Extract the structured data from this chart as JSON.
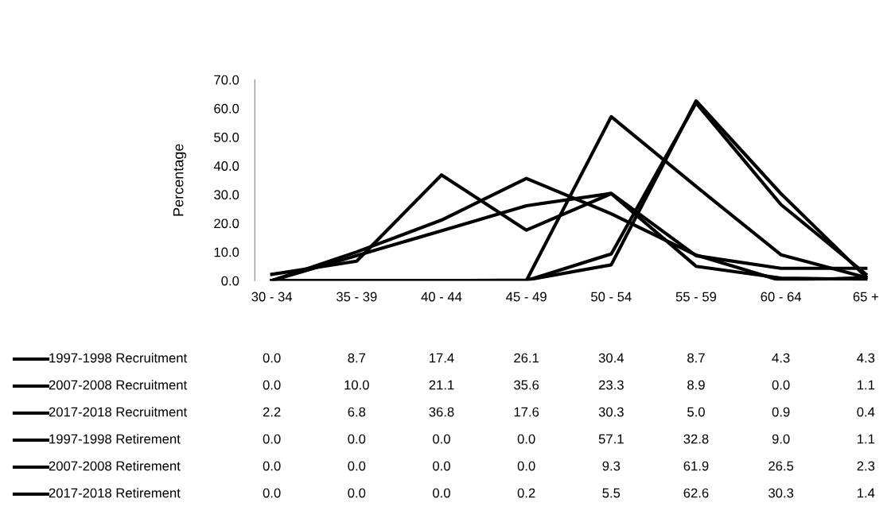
{
  "chart_data": {
    "type": "line",
    "ylabel": "Percentage",
    "categories": [
      "30 - 34",
      "35 - 39",
      "40 - 44",
      "45 - 49",
      "50 - 54",
      "55 - 59",
      "60 - 64",
      "65 +"
    ],
    "series": [
      {
        "name": "1997-1998 Recruitment",
        "color": "#000000",
        "values": [
          0.0,
          8.7,
          17.4,
          26.1,
          30.4,
          8.7,
          4.3,
          4.3
        ],
        "value_labels": [
          "0.0",
          "8.7",
          "17.4",
          "26.1",
          "30.4",
          "8.7",
          "4.3",
          "4.3"
        ]
      },
      {
        "name": "2007-2008 Recruitment",
        "color": "#000000",
        "values": [
          0.0,
          10.0,
          21.1,
          35.6,
          23.3,
          8.9,
          0.0,
          1.1
        ],
        "value_labels": [
          "0.0",
          "10.0",
          "21.1",
          "35.6",
          "23.3",
          "8.9",
          "0.0",
          "1.1"
        ]
      },
      {
        "name": "2017-2018 Recruitment",
        "color": "#000000",
        "values": [
          2.2,
          6.8,
          36.8,
          17.6,
          30.3,
          5.0,
          0.9,
          0.4
        ],
        "value_labels": [
          "2.2",
          "6.8",
          "36.8",
          "17.6",
          "30.3",
          "5.0",
          "0.9",
          "0.4"
        ]
      },
      {
        "name": "1997-1998 Retirement",
        "color": "#000000",
        "values": [
          0.0,
          0.0,
          0.0,
          0.0,
          57.1,
          32.8,
          9.0,
          1.1
        ],
        "value_labels": [
          "0.0",
          "0.0",
          "0.0",
          "0.0",
          "57.1",
          "32.8",
          "9.0",
          "1.1"
        ]
      },
      {
        "name": "2007-2008 Retirement",
        "color": "#000000",
        "values": [
          0.0,
          0.0,
          0.0,
          0.0,
          9.3,
          61.9,
          26.5,
          2.3
        ],
        "value_labels": [
          "0.0",
          "0.0",
          "0.0",
          "0.0",
          "9.3",
          "61.9",
          "26.5",
          "2.3"
        ]
      },
      {
        "name": "2017-2018 Retirement",
        "color": "#000000",
        "values": [
          0.0,
          0.0,
          0.0,
          0.2,
          5.5,
          62.6,
          30.3,
          1.4
        ],
        "value_labels": [
          "0.0",
          "0.0",
          "0.0",
          "0.2",
          "5.5",
          "62.6",
          "30.3",
          "1.4"
        ]
      }
    ],
    "ylim": [
      0,
      70
    ],
    "yticks": [
      {
        "value": 0,
        "label": "0.0"
      },
      {
        "value": 10,
        "label": "10.0"
      },
      {
        "value": 20,
        "label": "20.0"
      },
      {
        "value": 30,
        "label": "30.0"
      },
      {
        "value": 40,
        "label": "40.0"
      },
      {
        "value": 50,
        "label": "50.0"
      },
      {
        "value": 60,
        "label": "60.0"
      },
      {
        "value": 70,
        "label": "70.0"
      }
    ],
    "grid": false,
    "legend": "bottom",
    "marker": "none",
    "line_style": "solid"
  }
}
